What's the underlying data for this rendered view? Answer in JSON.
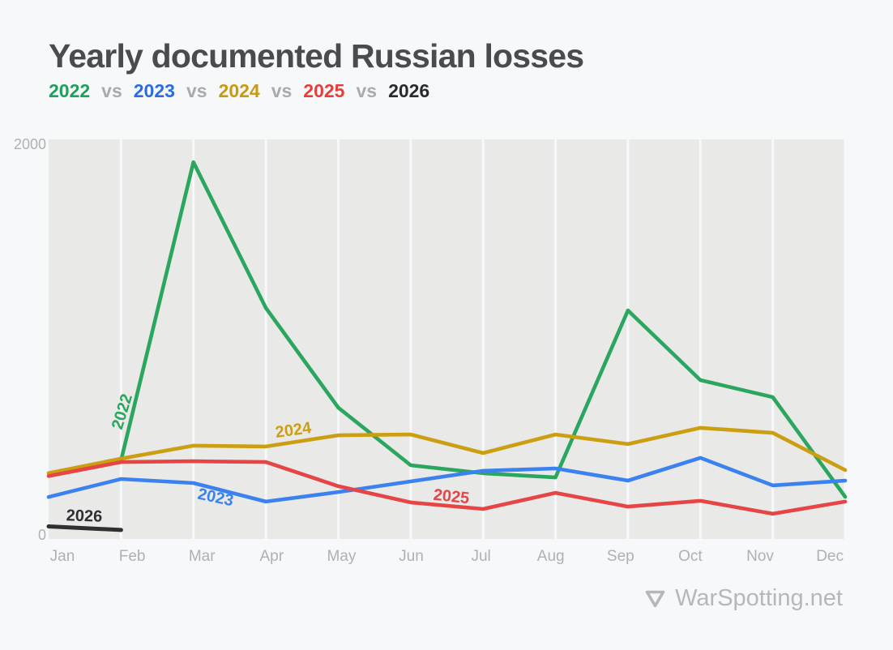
{
  "header": {
    "title": "Yearly documented Russian losses",
    "subtitle": {
      "separator": "vs",
      "separator_color": "#a8aaad",
      "years": [
        {
          "label": "2022",
          "color": "#1ea05a"
        },
        {
          "label": "2023",
          "color": "#2b6cdf"
        },
        {
          "label": "2024",
          "color": "#c99a0f"
        },
        {
          "label": "2025",
          "color": "#e63e3a"
        },
        {
          "label": "2026",
          "color": "#282a2d"
        }
      ]
    }
  },
  "chart_data": {
    "type": "line",
    "title": "Yearly documented Russian losses",
    "categories": [
      "Jan",
      "Feb",
      "Mar",
      "Apr",
      "May",
      "Jun",
      "Jul",
      "Aug",
      "Sep",
      "Oct",
      "Nov",
      "Dec"
    ],
    "xlabel": "",
    "ylabel": "",
    "ylim": [
      0,
      2000
    ],
    "y_ticks": [
      0,
      2000
    ],
    "grid": "vertical-monthly",
    "legend_position": "inline-line-labels",
    "colors": {
      "plot_bg": "#e9e9e8",
      "gridline": "#f7f8f9",
      "axis_label": "#aeb1b4"
    },
    "series": [
      {
        "name": "2022",
        "color": "#2aa65f",
        "start_index": 1,
        "values": [
          394,
          1886,
          1156,
          657,
          369,
          329,
          308,
          1144,
          795,
          710,
          211
        ]
      },
      {
        "name": "2023",
        "color": "#3b82ee",
        "start_index": 0,
        "values": [
          210,
          300,
          280,
          187,
          235,
          288,
          341,
          353,
          292,
          406,
          268,
          292
        ]
      },
      {
        "name": "2024",
        "color": "#cc9e12",
        "start_index": 0,
        "values": [
          330,
          402,
          467,
          463,
          519,
          523,
          430,
          523,
          475,
          556,
          531,
          345
        ]
      },
      {
        "name": "2025",
        "color": "#e64545",
        "start_index": 0,
        "values": [
          315,
          385,
          389,
          385,
          264,
          183,
          150,
          231,
          162,
          191,
          126,
          187
        ]
      },
      {
        "name": "2026",
        "color": "#2e2f31",
        "start_index": 0,
        "values": [
          63,
          45
        ]
      }
    ]
  },
  "footer": {
    "brand": "WarSpotting.net",
    "logo_icon": "triangle-down-icon",
    "color": "#b5b8bb"
  }
}
